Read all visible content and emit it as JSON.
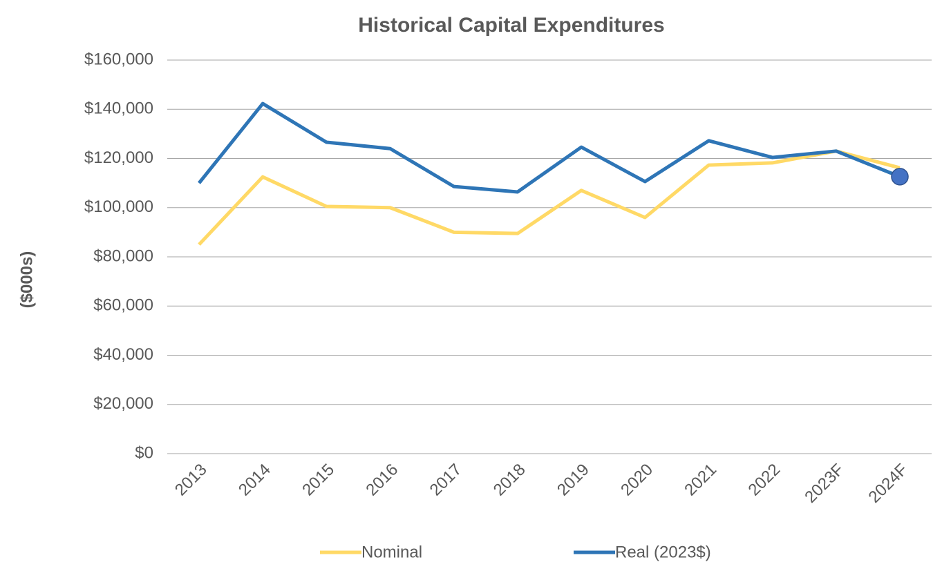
{
  "chart_data": {
    "type": "line",
    "title": "Historical Capital Expenditures",
    "y_label": "($000s)",
    "categories": [
      "2013",
      "2014",
      "2015",
      "2016",
      "2017",
      "2018",
      "2019",
      "2020",
      "2021",
      "2022",
      "2023F",
      "2024F"
    ],
    "series": [
      {
        "name": "Nominal",
        "color": "#ffd966",
        "values": [
          85000,
          112500,
          100500,
          100000,
          90000,
          89500,
          107000,
          96000,
          117300,
          118200,
          123000,
          116200
        ]
      },
      {
        "name": "Real (2023$)",
        "color": "#2e75b6",
        "marker_color": "#4472c4",
        "values": [
          110000,
          142300,
          126600,
          124000,
          108600,
          106400,
          124600,
          110600,
          127200,
          120400,
          123000,
          112600
        ]
      }
    ],
    "ylim": [
      0,
      160000
    ],
    "yticks": [
      {
        "value": 0,
        "label": "$0"
      },
      {
        "value": 20000,
        "label": "$20,000"
      },
      {
        "value": 40000,
        "label": "$40,000"
      },
      {
        "value": 60000,
        "label": "$60,000"
      },
      {
        "value": 80000,
        "label": "$80,000"
      },
      {
        "value": 100000,
        "label": "$100,000"
      },
      {
        "value": 120000,
        "label": "$120,000"
      },
      {
        "value": 140000,
        "label": "$140,000"
      },
      {
        "value": 160000,
        "label": "$160,000"
      }
    ],
    "grid": true,
    "legend": "bottom"
  }
}
